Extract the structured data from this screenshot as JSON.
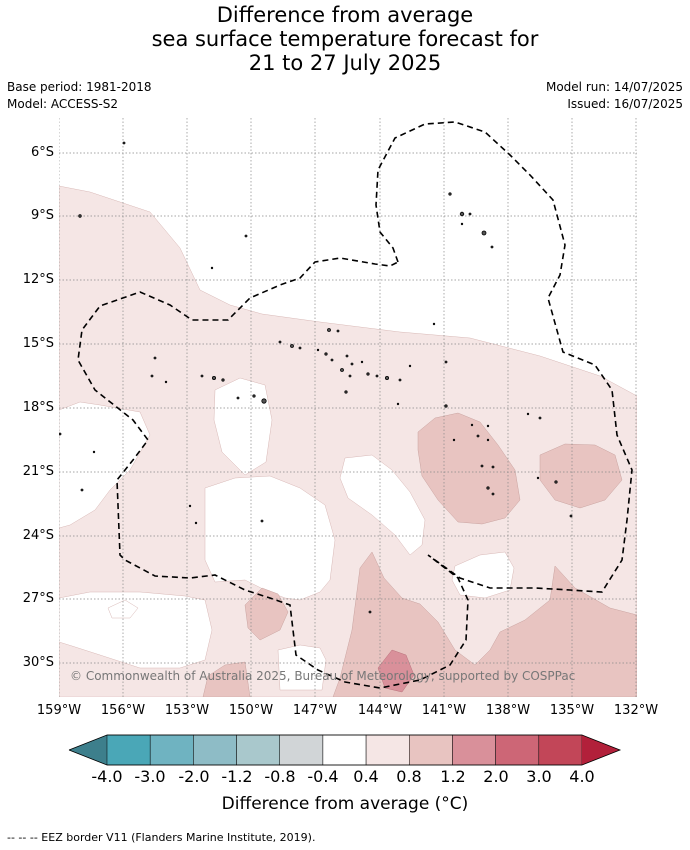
{
  "title": {
    "line1": "Difference from average",
    "line2": "sea surface temperature forecast for",
    "line3": "21 to 27 July 2025"
  },
  "meta": {
    "base_period": "Base period: 1981-2018",
    "model": "Model: ACCESS-S2",
    "model_run": "Model run: 14/07/2025",
    "issued": "Issued: 16/07/2025"
  },
  "axes": {
    "lat_labels": [
      "6°S",
      "9°S",
      "12°S",
      "15°S",
      "18°S",
      "21°S",
      "24°S",
      "27°S",
      "30°S"
    ],
    "lon_labels": [
      "159°W",
      "156°W",
      "153°W",
      "150°W",
      "147°W",
      "144°W",
      "141°W",
      "138°W",
      "135°W",
      "132°W"
    ]
  },
  "colorbar": {
    "labels": [
      "-4.0",
      "-3.0",
      "-2.0",
      "-1.2",
      "-0.8",
      "-0.4",
      "0.4",
      "0.8",
      "1.2",
      "2.0",
      "3.0",
      "4.0"
    ],
    "colors": [
      "#3d7f8c",
      "#4aa7b7",
      "#6fb3c1",
      "#8ebcc6",
      "#a9c8cc",
      "#d1d5d7",
      "#ffffff",
      "#f5e6e5",
      "#e8c4c1",
      "#d9909a",
      "#cd6676",
      "#c24658",
      "#b2203a"
    ],
    "title": "Difference from average (°C)"
  },
  "attribution": "© Commonwealth of Australia 2025, Bureau of Meteorology, supported by COSPPac",
  "footer": "--  --  -- EEZ border V11 (Flanders Marine Institute, 2019)."
}
